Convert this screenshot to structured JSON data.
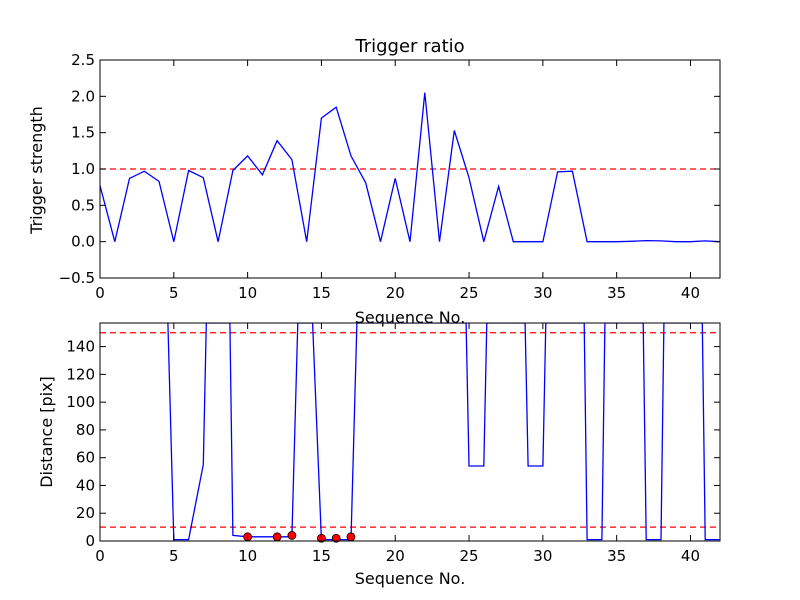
{
  "chart_data": [
    {
      "type": "line",
      "title": "Trigger ratio",
      "xlabel": "Sequence No.",
      "ylabel": "Trigger strength",
      "xlim": [
        0,
        42
      ],
      "ylim": [
        -0.5,
        2.5
      ],
      "xticks": [
        "0",
        "5",
        "10",
        "15",
        "20",
        "25",
        "30",
        "35",
        "40"
      ],
      "yticks": [
        "−0.5",
        "0.0",
        "0.5",
        "1.0",
        "1.5",
        "2.0",
        "2.5"
      ],
      "grid": false,
      "series": [
        {
          "color": "#0000ff",
          "x": [
            0,
            1,
            2,
            3,
            4,
            5,
            6,
            7,
            8,
            9,
            10,
            11,
            12,
            13,
            14,
            15,
            16,
            17,
            18,
            19,
            20,
            21,
            22,
            23,
            24,
            25,
            26,
            27,
            28,
            29,
            30,
            31,
            32,
            33,
            34,
            35,
            36,
            37,
            38,
            39,
            40,
            41,
            42
          ],
          "y": [
            0.77,
            0.0,
            0.87,
            0.97,
            0.83,
            0.0,
            0.98,
            0.88,
            0.0,
            0.98,
            1.18,
            0.92,
            1.39,
            1.13,
            0.0,
            1.7,
            1.85,
            1.18,
            0.81,
            0.0,
            0.87,
            0.0,
            2.05,
            0.0,
            1.53,
            0.88,
            0.0,
            0.76,
            0.0,
            0.0,
            0.0,
            0.96,
            0.97,
            0.0,
            0.0,
            0.0,
            0.005,
            0.015,
            0.01,
            0.0,
            0.0,
            0.01,
            0.0
          ]
        }
      ],
      "reference_lines": [
        {
          "y": 1.0,
          "color": "#ff0000",
          "style": "dashed"
        }
      ]
    },
    {
      "type": "line",
      "title": "",
      "xlabel": "Sequence No.",
      "ylabel": "Distance [pix]",
      "xlim": [
        0,
        42
      ],
      "ylim": [
        0,
        157
      ],
      "xticks": [
        "0",
        "5",
        "10",
        "15",
        "20",
        "25",
        "30",
        "35",
        "40"
      ],
      "yticks": [
        "0",
        "20",
        "40",
        "60",
        "80",
        "100",
        "120",
        "140"
      ],
      "grid": false,
      "series": [
        {
          "color": "#0000ff",
          "x": [
            4.6,
            5,
            6,
            7,
            7.2,
            8.8,
            9,
            10,
            11,
            12,
            13,
            13.4,
            14.4,
            15,
            16,
            17,
            17.4,
            24.8,
            25,
            26,
            26.2,
            28.8,
            29,
            30,
            30.2,
            32.8,
            33,
            34,
            34.2,
            36.8,
            37,
            38,
            38.2,
            40.8,
            41,
            42
          ],
          "y": [
            157,
            1,
            1,
            55,
            157,
            157,
            4,
            3,
            3,
            3,
            3,
            157,
            157,
            1,
            1,
            1,
            157,
            157,
            54,
            54,
            157,
            157,
            54,
            54,
            157,
            157,
            1,
            1,
            157,
            157,
            1,
            1,
            157,
            157,
            1,
            1
          ]
        },
        {
          "color": "#ff0000",
          "marker": "o",
          "x": [
            10,
            12,
            13,
            15,
            16,
            17
          ],
          "y": [
            3,
            3,
            4,
            2,
            2,
            3
          ]
        }
      ],
      "reference_lines": [
        {
          "y": 150,
          "color": "#ff0000",
          "style": "dashed"
        },
        {
          "y": 10,
          "color": "#ff0000",
          "style": "dashed"
        }
      ]
    }
  ]
}
